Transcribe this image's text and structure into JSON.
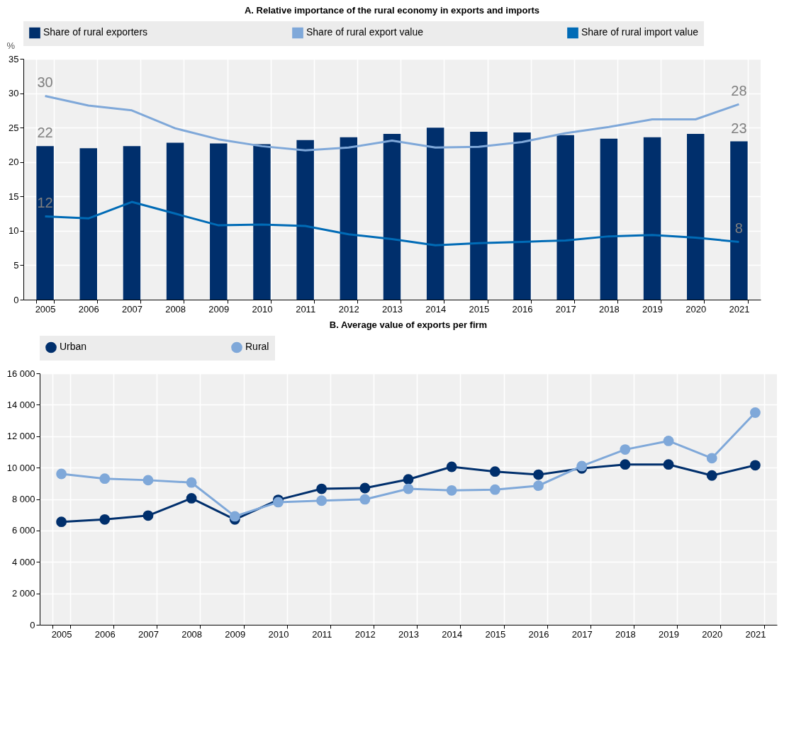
{
  "chart_data": [
    {
      "type": "bar",
      "title": "A. Relative importance of the rural economy in exports and imports",
      "ylabel": "%",
      "categories": [
        "2005",
        "2006",
        "2007",
        "2008",
        "2009",
        "2010",
        "2011",
        "2012",
        "2013",
        "2014",
        "2015",
        "2016",
        "2017",
        "2018",
        "2019",
        "2020",
        "2021"
      ],
      "ylim": [
        0,
        35
      ],
      "yticks": [
        0,
        5,
        10,
        15,
        20,
        25,
        30,
        35
      ],
      "grid": true,
      "legend": "top",
      "series": [
        {
          "name": "Share of rural exporters",
          "type": "bar",
          "color": "#002f6c",
          "values": [
            22.3,
            22.0,
            22.3,
            22.8,
            22.7,
            22.6,
            23.2,
            23.6,
            24.1,
            25.0,
            24.4,
            24.3,
            23.9,
            23.4,
            23.6,
            24.1,
            23.0
          ],
          "value_labels": [
            "22",
            null,
            null,
            null,
            null,
            null,
            null,
            null,
            null,
            null,
            null,
            null,
            null,
            null,
            null,
            null,
            "23"
          ]
        },
        {
          "name": "Share of rural export value",
          "type": "line",
          "color": "#7fa8d9",
          "values": [
            29.6,
            28.2,
            27.5,
            24.9,
            23.3,
            22.3,
            21.7,
            22.1,
            23.1,
            22.1,
            22.2,
            22.9,
            24.2,
            25.1,
            26.2,
            26.2,
            28.4
          ],
          "value_labels": [
            "30",
            null,
            null,
            null,
            null,
            null,
            null,
            null,
            null,
            null,
            null,
            null,
            null,
            null,
            null,
            null,
            "28"
          ]
        },
        {
          "name": "Share of rural import value",
          "type": "line",
          "color": "#006bb6",
          "values": [
            12.1,
            11.8,
            14.2,
            12.5,
            10.8,
            10.9,
            10.7,
            9.5,
            8.8,
            7.9,
            8.2,
            8.4,
            8.6,
            9.2,
            9.4,
            9.0,
            8.4
          ],
          "value_labels": [
            "12",
            null,
            null,
            null,
            null,
            null,
            null,
            null,
            null,
            null,
            null,
            null,
            null,
            null,
            null,
            null,
            "8"
          ]
        }
      ]
    },
    {
      "type": "line",
      "title": "B. Average value of exports per firm",
      "categories": [
        "2005",
        "2006",
        "2007",
        "2008",
        "2009",
        "2010",
        "2011",
        "2012",
        "2013",
        "2014",
        "2015",
        "2016",
        "2017",
        "2018",
        "2019",
        "2020",
        "2021"
      ],
      "ylim": [
        0,
        16000
      ],
      "yticks": [
        0,
        {
          "value": 2000,
          "label": "2 000"
        },
        {
          "value": 4000,
          "label": "4 000"
        },
        {
          "value": 6000,
          "label": "6 000"
        },
        {
          "value": 8000,
          "label": "8 000"
        },
        {
          "value": 10000,
          "label": "10 000"
        },
        {
          "value": 12000,
          "label": "12 000"
        },
        {
          "value": 14000,
          "label": "14 000"
        },
        {
          "value": 16000,
          "label": "16 000"
        }
      ],
      "grid": true,
      "legend": "top",
      "marker": "circle",
      "series": [
        {
          "name": "Urban",
          "color": "#002f6c",
          "values": [
            6550,
            6700,
            6950,
            8050,
            6700,
            7950,
            8650,
            8700,
            9250,
            10050,
            9750,
            9550,
            9950,
            10200,
            10200,
            9500,
            10150
          ]
        },
        {
          "name": "Rural",
          "color": "#7fa8d9",
          "values": [
            9600,
            9300,
            9200,
            9050,
            6900,
            7800,
            7900,
            7980,
            8650,
            8550,
            8600,
            8850,
            10100,
            11150,
            11700,
            10600,
            13500
          ]
        }
      ]
    }
  ]
}
